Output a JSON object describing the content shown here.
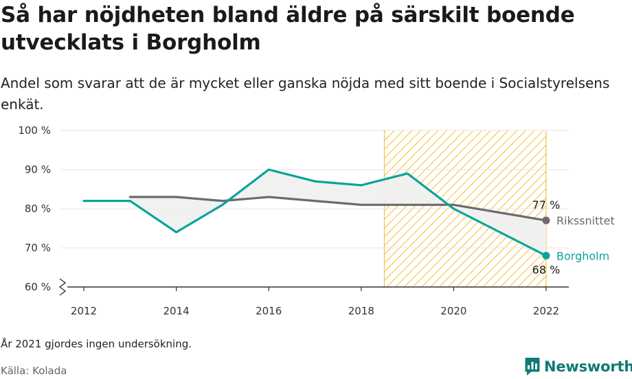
{
  "header": {
    "title": "Så har nöjdheten bland äldre på särskilt boende utvecklats i Borgholm",
    "subtitle": "Andel som svarar att de är mycket eller ganska nöjda med sitt boende i Socialstyrelsens enkät."
  },
  "footer": {
    "note": "År 2021 gjordes ingen undersökning.",
    "source": "Källa: Kolada",
    "brand": "Newsworthy"
  },
  "colors": {
    "borgholm": "#0ba39a",
    "riket": "#6b6b70",
    "highlight": "#f5c242",
    "grid": "#e6e6e6",
    "fill": "#f0f0f0",
    "brand": "#0f7b74"
  },
  "chart_data": {
    "type": "line",
    "x": [
      2012,
      2013,
      2014,
      2015,
      2016,
      2017,
      2018,
      2019,
      2020,
      2022
    ],
    "series": [
      {
        "name": "Borgholm",
        "values": [
          82,
          82,
          74,
          81,
          90,
          87,
          86,
          89,
          80,
          68
        ]
      },
      {
        "name": "Rikssnittet",
        "values": [
          null,
          83,
          83,
          82,
          83,
          82,
          81,
          81,
          81,
          77
        ]
      }
    ],
    "end_labels": {
      "Borgholm": "68 %",
      "Rikssnittet": "77 %"
    },
    "y_ticks": [
      60,
      70,
      80,
      90,
      100
    ],
    "y_tick_labels": [
      "60 %",
      "70 %",
      "80 %",
      "90 %",
      "100 %"
    ],
    "x_ticks": [
      2012,
      2014,
      2016,
      2018,
      2020,
      2022
    ],
    "ylim": [
      60,
      100
    ],
    "y_axis_break": true,
    "highlight_range": [
      2018.5,
      2022
    ],
    "grid": true
  }
}
